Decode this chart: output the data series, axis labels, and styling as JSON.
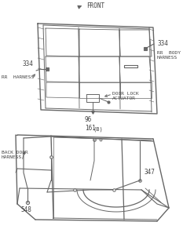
{
  "bg_color": "#ffffff",
  "line_color": "#666666",
  "text_color": "#444444",
  "labels": {
    "front": "FRONT",
    "rr_body_harness": "RR  BODY\nHARNESS",
    "rr_harness": "RR  HARNESS",
    "door_lock_actuator": "DOOR LOCK\nACTUATOR",
    "back_door_harness": "BACK DOOR\nHARNESS",
    "num_334_top": "334",
    "num_334_left": "334",
    "num_96": "96",
    "num_161": "161",
    "num_161b": "(B)",
    "num_347": "347",
    "num_548": "548"
  },
  "font_size_label": 5.0,
  "font_size_num": 5.5,
  "figsize": [
    2.47,
    3.2
  ],
  "dpi": 100
}
